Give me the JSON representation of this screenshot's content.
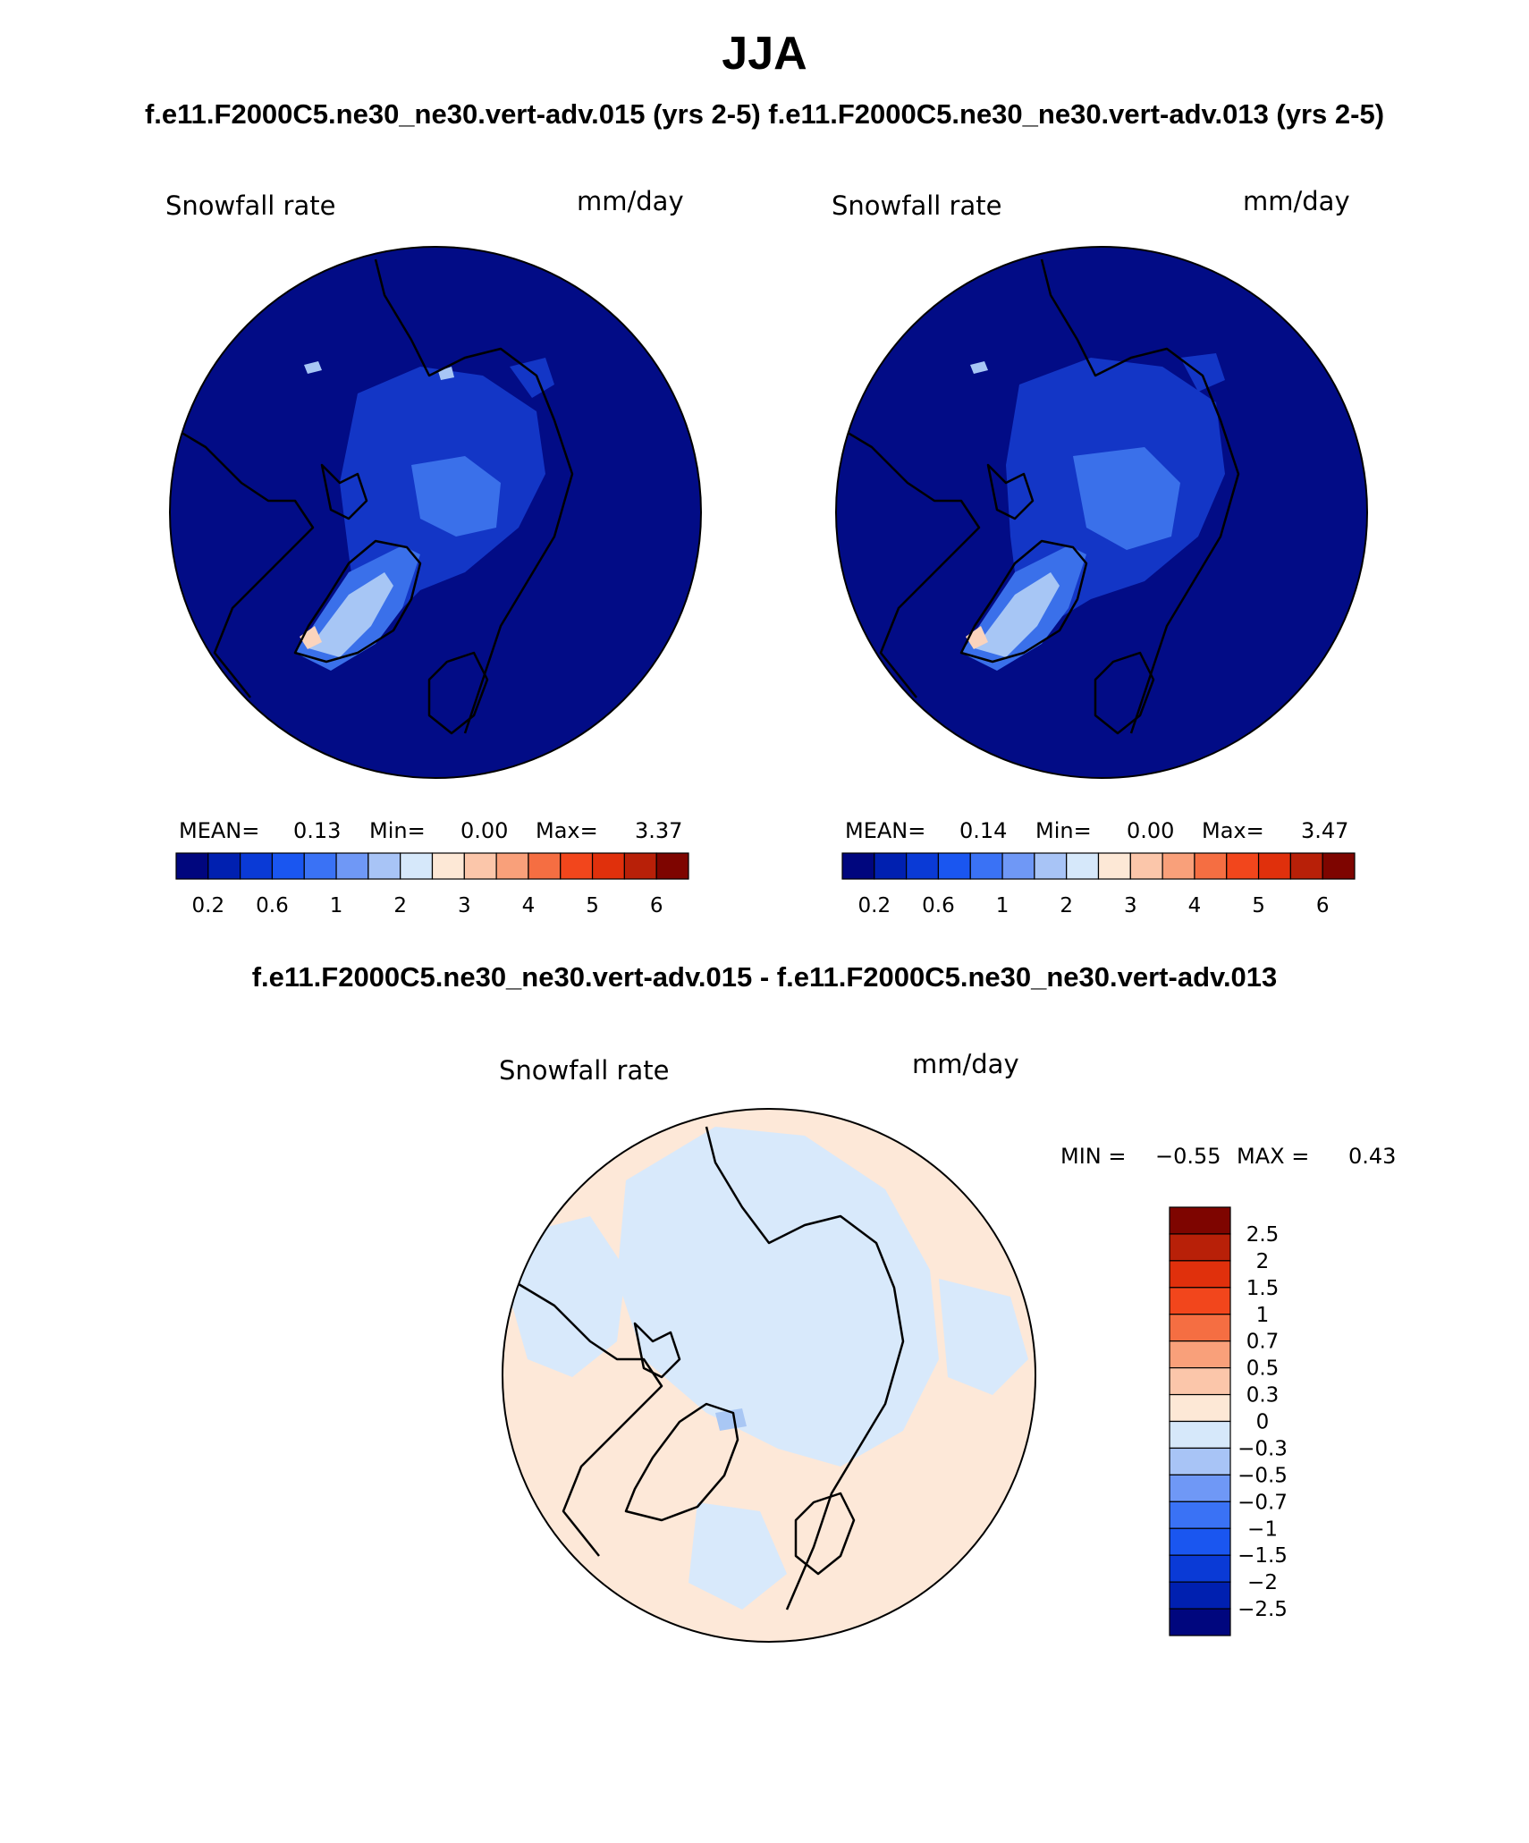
{
  "figure": {
    "title": "JJA",
    "top_subtitle": "f.e11.F2000C5.ne30_ne30.vert-adv.015 (yrs 2-5)  f.e11.F2000C5.ne30_ne30.vert-adv.013 (yrs 2-5)",
    "diff_subtitle": "f.e11.F2000C5.ne30_ne30.vert-adv.015 - f.e11.F2000C5.ne30_ne30.vert-adv.013"
  },
  "panels": [
    {
      "variable": "Snowfall rate",
      "units": "mm/day",
      "mean_label": "MEAN=",
      "mean": "0.13",
      "min_label": "Min=",
      "min": "0.00",
      "max_label": "Max=",
      "max": "3.37"
    },
    {
      "variable": "Snowfall rate",
      "units": "mm/day",
      "mean_label": "MEAN=",
      "mean": "0.14",
      "min_label": "Min=",
      "min": "0.00",
      "max_label": "Max=",
      "max": "3.47"
    }
  ],
  "diff_panel": {
    "variable": "Snowfall rate",
    "units": "mm/day",
    "min_label": "MIN =",
    "min": "−0.55",
    "max_label": "MAX =",
    "max": "0.43"
  },
  "abs_colorbar": {
    "colors": [
      "#00067e",
      "#0020b0",
      "#0a3ad6",
      "#1a56f0",
      "#3a72f5",
      "#6f98f6",
      "#a8c4f6",
      "#d6e8fa",
      "#fde8d6",
      "#fbc6aa",
      "#f9a07a",
      "#f56e42",
      "#f2461c",
      "#e0300c",
      "#b82008",
      "#7e0500"
    ],
    "tick_labels": [
      "0.2",
      "0.6",
      "1",
      "2",
      "3",
      "4",
      "5",
      "6"
    ]
  },
  "diff_colorbar": {
    "colors": [
      "#7e0500",
      "#b82008",
      "#e0300c",
      "#f2461c",
      "#f56e42",
      "#f9a07a",
      "#fbc6aa",
      "#fde8d6",
      "#d6e8fa",
      "#a8c4f6",
      "#6f98f6",
      "#3a72f5",
      "#1a56f0",
      "#0a3ad6",
      "#0020b0",
      "#00067e"
    ],
    "tick_labels": [
      "2.5",
      "2",
      "1.5",
      "1",
      "0.7",
      "0.5",
      "0.3",
      "0",
      "−0.3",
      "−0.5",
      "−0.7",
      "−1",
      "−1.5",
      "−2",
      "−2.5"
    ]
  },
  "map_colors": {
    "ocean_low": "#020c86",
    "low_snow": "#1336c6",
    "mid_snow": "#3a70ea",
    "high_snow": "#a7c6f5",
    "peak_snow": "#fbd4bd",
    "diff_pos": "#fde8d8",
    "diff_neg": "#d8e9fb",
    "diff_neg2": "#a9c7f4",
    "coast": "#000000"
  }
}
